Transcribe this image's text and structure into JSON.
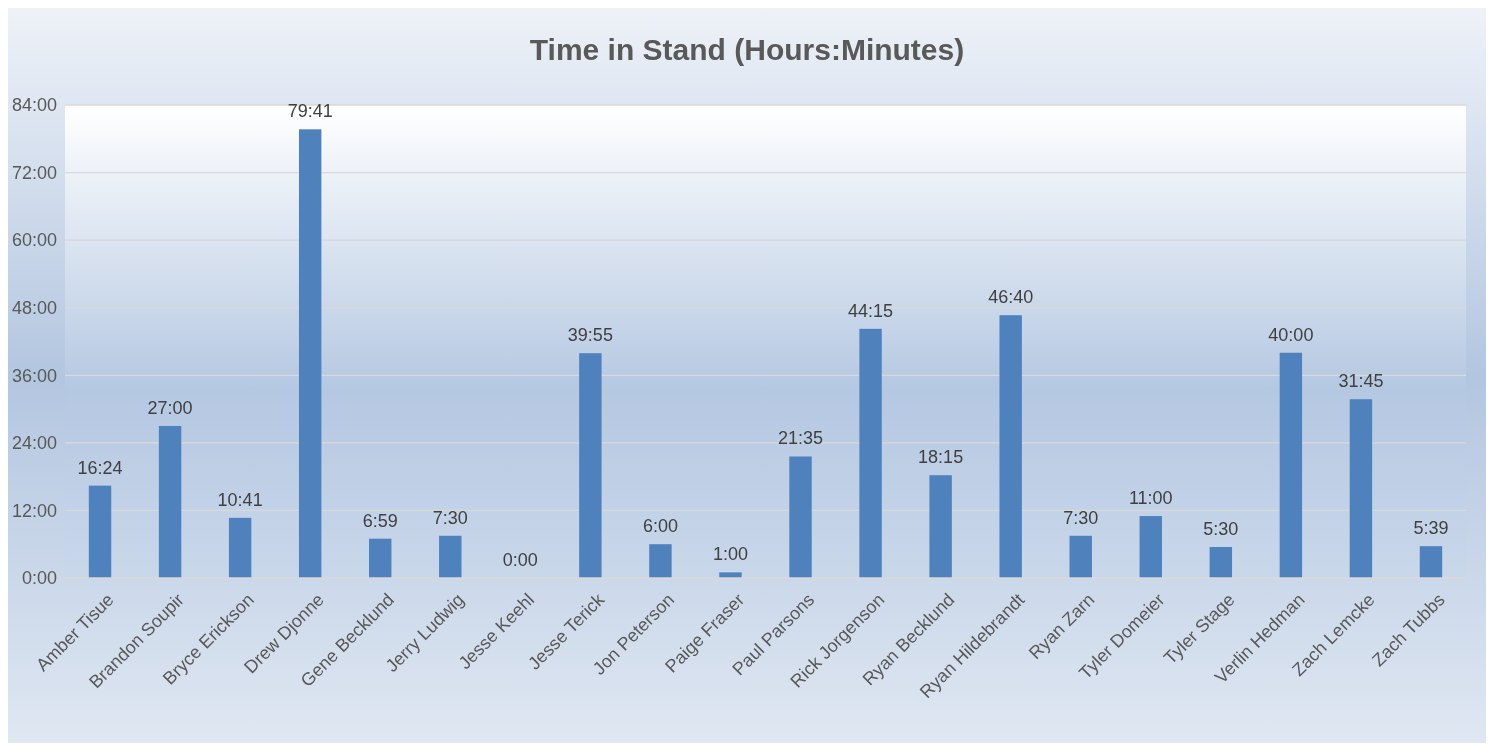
{
  "chart_data": {
    "type": "bar",
    "title": "Time in Stand (Hours:Minutes)",
    "categories": [
      "Amber Tisue",
      "Brandon Soupir",
      "Bryce Erickson",
      "Drew Djonne",
      "Gene Becklund",
      "Jerry Ludwig",
      "Jesse Keehl",
      "Jesse Terick",
      "Jon Peterson",
      "Paige Fraser",
      "Paul Parsons",
      "Rick Jorgenson",
      "Ryan Becklund",
      "Ryan Hildebrandt",
      "Ryan Zarn",
      "Tyler Domeier",
      "Tyler Stage",
      "Verlin Hedman",
      "Zach Lemcke",
      "Zach Tubbs"
    ],
    "values": [
      16.4,
      27,
      10.683,
      79.683,
      6.983,
      7.5,
      0,
      39.917,
      6,
      1,
      21.583,
      44.25,
      18.25,
      46.667,
      7.5,
      11,
      5.5,
      40,
      31.75,
      5.65
    ],
    "value_labels": [
      "16:24",
      "27:00",
      "10:41",
      "79:41",
      "6:59",
      "7:30",
      "0:00",
      "39:55",
      "6:00",
      "1:00",
      "21:35",
      "44:15",
      "18:15",
      "46:40",
      "7:30",
      "11:00",
      "5:30",
      "40:00",
      "31:45",
      "5:39"
    ],
    "color": "#4f81bd",
    "ylim": [
      0,
      84
    ],
    "yticks": [
      {
        "value": 0,
        "label": "0:00"
      },
      {
        "value": 12,
        "label": "12:00"
      },
      {
        "value": 24,
        "label": "24:00"
      },
      {
        "value": 36,
        "label": "36:00"
      },
      {
        "value": 48,
        "label": "48:00"
      },
      {
        "value": 60,
        "label": "60:00"
      },
      {
        "value": 72,
        "label": "72:00"
      },
      {
        "value": 84,
        "label": "84:00"
      }
    ],
    "grid": "y"
  }
}
